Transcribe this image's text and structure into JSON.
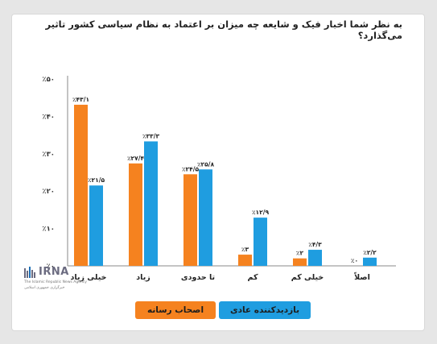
{
  "chart_data": {
    "type": "bar",
    "title": "به نظر شما اخبار فیک و شایعه چه میزان بر اعتماد به نظام سیاسی کشور تاثیر می‌گذارد؟",
    "categories": [
      "خیلی زیاد",
      "زیاد",
      "تا حدودی",
      "کم",
      "خیلی کم",
      "اصلاً"
    ],
    "series": [
      {
        "name": "اصحاب رسانه",
        "color": "#f5821f",
        "values": [
          43.1,
          27.4,
          24.5,
          3.0,
          2.0,
          0.0
        ],
        "labels": [
          "٪۴۳/۱",
          "٪۲۷/۴",
          "٪۲۴/۵",
          "٪۳",
          "٪۲",
          "٪۰"
        ]
      },
      {
        "name": "بازدیدکننده عادی",
        "color": "#1f9de0",
        "values": [
          21.5,
          33.3,
          25.8,
          12.9,
          4.3,
          2.2
        ],
        "labels": [
          "٪۲۱/۵",
          "٪۳۳/۳",
          "٪۲۵/۸",
          "٪۱۲/۹",
          "٪۴/۳",
          "٪۲/۲"
        ]
      }
    ],
    "yticks": [
      "٪۵۰",
      "٪۴۰",
      "٪۳۰",
      "٪۲۰",
      "٪۱۰",
      "٪۰"
    ],
    "ytick_values": [
      50,
      40,
      30,
      20,
      10,
      0
    ],
    "ylim": [
      0,
      50
    ],
    "grid": false,
    "legend": "bottom"
  },
  "logo": {
    "name": "IRNA",
    "subtitle_en": "The Islamic Republic News Agency",
    "subtitle_fa": "خبرگزاری جمهوری اسلامی"
  }
}
